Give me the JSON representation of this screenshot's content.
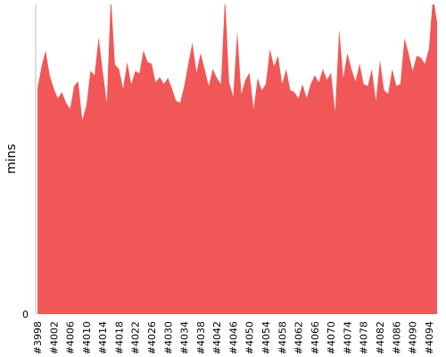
{
  "chart_data": {
    "type": "area",
    "y_label": "mins",
    "color": "#f25757",
    "categories": [
      "#3998",
      null,
      null,
      null,
      "#4002",
      null,
      null,
      null,
      "#4006",
      null,
      null,
      null,
      "#4010",
      null,
      null,
      null,
      "#4014",
      null,
      null,
      null,
      "#4018",
      null,
      null,
      null,
      "#4022",
      null,
      null,
      null,
      "#4026",
      null,
      null,
      null,
      "#4030",
      null,
      null,
      null,
      "#4034",
      null,
      null,
      null,
      "#4038",
      null,
      null,
      null,
      "#4042",
      null,
      null,
      null,
      "#4046",
      null,
      null,
      null,
      "#4050",
      null,
      null,
      null,
      "#4054",
      null,
      null,
      null,
      "#4058",
      null,
      null,
      null,
      "#4062",
      null,
      null,
      null,
      "#4066",
      null,
      null,
      null,
      "#4070",
      null,
      null,
      null,
      "#4074",
      null,
      null,
      null,
      "#4078",
      null,
      null,
      null,
      "#4082",
      null,
      null,
      null,
      "#4086",
      null,
      null,
      null,
      "#4090",
      null,
      null,
      null,
      "#4094",
      null,
      null
    ],
    "values": [
      25.5,
      28,
      29.8,
      27,
      25.5,
      24.4,
      25.1,
      23.9,
      23.2,
      25.8,
      26.3,
      21.9,
      23.6,
      27.5,
      27,
      31.3,
      27.5,
      23.9,
      36,
      28.2,
      27.7,
      25.5,
      28.5,
      26,
      27.5,
      27.2,
      29.8,
      28.5,
      28.3,
      26.2,
      26.8,
      26,
      26.7,
      25.5,
      24.1,
      23.9,
      25.8,
      28.3,
      30.7,
      27.3,
      29.5,
      27.7,
      25.8,
      27.7,
      26.7,
      26,
      36,
      26.2,
      24.6,
      32,
      24.9,
      26.5,
      27.3,
      23.2,
      26.7,
      25.3,
      26,
      30,
      28,
      29.2,
      26,
      27.7,
      25.3,
      25.1,
      24.4,
      26,
      24.4,
      26,
      27,
      26.2,
      27.7,
      26.5,
      27.3,
      22.9,
      32.2,
      26.7,
      29.5,
      27.7,
      26.3,
      28.3,
      26,
      25.8,
      27.7,
      24.1,
      28.7,
      25.3,
      24.9,
      27.7,
      25.8,
      26,
      31.2,
      29.5,
      27.5,
      29.2,
      29,
      28.3,
      30,
      36,
      33
    ],
    "ylim": [
      0,
      35
    ],
    "yticks": [
      0
    ]
  }
}
